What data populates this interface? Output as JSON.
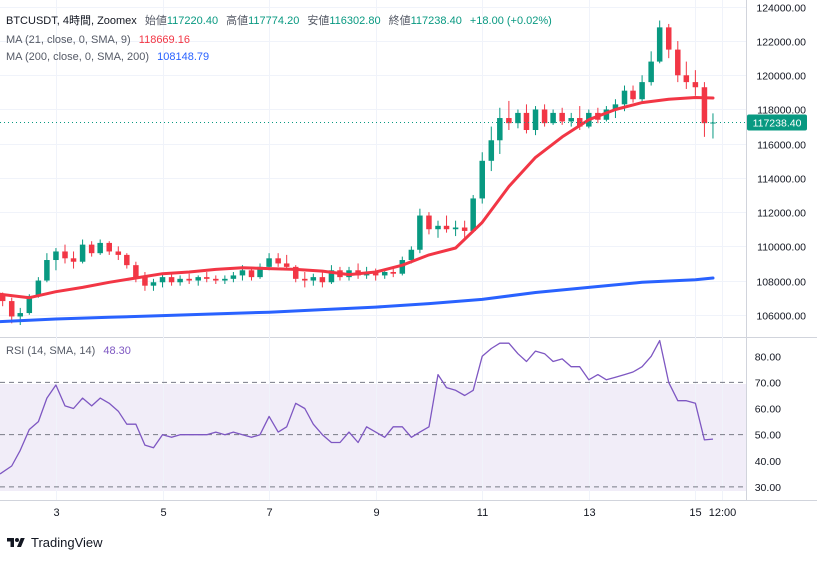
{
  "chart_data": {
    "type": "candlestick",
    "symbol_line": {
      "symbol": "BTCUSDT, 4時間, Zoomex",
      "open_label": "始値",
      "open": "117220.40",
      "high_label": "高値",
      "high": "117774.20",
      "low_label": "安値",
      "low": "116302.80",
      "close_label": "終値",
      "close": "117238.40",
      "change": "+18.00 (+0.02%)"
    },
    "ma21": {
      "label": "MA (21, close, 0, SMA, 9)",
      "value": "118669.16",
      "color": "#f23645"
    },
    "ma200": {
      "label": "MA (200, close, 0, SMA, 200)",
      "value": "108148.79",
      "color": "#2962ff"
    },
    "price_axis": {
      "ticks": [
        "124000.00",
        "122000.00",
        "120000.00",
        "118000.00",
        "116000.00",
        "114000.00",
        "112000.00",
        "110000.00",
        "108000.00",
        "106000.00"
      ],
      "range": [
        104700,
        124400
      ],
      "last_price_label": "117238.40",
      "last_price": 117238.4
    },
    "time_axis": {
      "range_days": [
        1.95,
        15.95
      ],
      "ticks": [
        {
          "day": 3,
          "label": "3"
        },
        {
          "day": 5,
          "label": "5"
        },
        {
          "day": 7,
          "label": "7"
        },
        {
          "day": 9,
          "label": "9"
        },
        {
          "day": 11,
          "label": "11"
        },
        {
          "day": 13,
          "label": "13"
        },
        {
          "day": 15,
          "label": "15"
        },
        {
          "day": 15.5,
          "label": "12:00"
        }
      ]
    },
    "candles": [
      [
        2.0,
        107200,
        107300,
        106500,
        106800
      ],
      [
        2.17,
        106800,
        107000,
        105500,
        105900
      ],
      [
        2.33,
        105900,
        106400,
        105400,
        106100
      ],
      [
        2.5,
        106100,
        107200,
        106000,
        107100
      ],
      [
        2.67,
        107100,
        108200,
        107000,
        108000
      ],
      [
        2.83,
        108000,
        109600,
        107900,
        109200
      ],
      [
        3.0,
        109200,
        109900,
        108600,
        109700
      ],
      [
        3.17,
        109700,
        110100,
        109000,
        109300
      ],
      [
        3.33,
        109300,
        109700,
        108700,
        109100
      ],
      [
        3.5,
        109100,
        110400,
        109000,
        110100
      ],
      [
        3.67,
        110100,
        110300,
        109400,
        109600
      ],
      [
        3.83,
        109600,
        110400,
        109500,
        110200
      ],
      [
        4.0,
        110200,
        110300,
        109500,
        109700
      ],
      [
        4.17,
        109700,
        110000,
        109200,
        109500
      ],
      [
        4.33,
        109500,
        109600,
        108700,
        108900
      ],
      [
        4.5,
        108900,
        109100,
        107900,
        108200
      ],
      [
        4.67,
        108200,
        108500,
        107400,
        107700
      ],
      [
        4.83,
        107700,
        108100,
        107400,
        107900
      ],
      [
        5.0,
        107900,
        108400,
        107600,
        108200
      ],
      [
        5.17,
        108200,
        108500,
        107700,
        107900
      ],
      [
        5.33,
        107900,
        108300,
        107700,
        108100
      ],
      [
        5.5,
        108100,
        108400,
        107800,
        108000
      ],
      [
        5.67,
        108000,
        108300,
        107700,
        108200
      ],
      [
        5.83,
        108200,
        108500,
        107900,
        108100
      ],
      [
        6.0,
        108100,
        108300,
        107800,
        108000
      ],
      [
        6.17,
        108000,
        108300,
        107800,
        108100
      ],
      [
        6.33,
        108100,
        108500,
        107900,
        108300
      ],
      [
        6.5,
        108300,
        108900,
        108000,
        108600
      ],
      [
        6.67,
        108600,
        108800,
        108000,
        108200
      ],
      [
        6.83,
        108200,
        109000,
        108100,
        108800
      ],
      [
        7.0,
        108800,
        109600,
        108600,
        109300
      ],
      [
        7.17,
        109300,
        109600,
        108800,
        109000
      ],
      [
        7.33,
        109000,
        109500,
        108600,
        108800
      ],
      [
        7.5,
        108800,
        108900,
        107900,
        108100
      ],
      [
        7.67,
        108100,
        108500,
        107600,
        108000
      ],
      [
        7.83,
        108000,
        108400,
        107700,
        108200
      ],
      [
        8.0,
        108200,
        108500,
        107600,
        107900
      ],
      [
        8.17,
        107900,
        108900,
        107800,
        108600
      ],
      [
        8.33,
        108600,
        108800,
        108000,
        108200
      ],
      [
        8.5,
        108200,
        108800,
        108000,
        108600
      ],
      [
        8.67,
        108600,
        109000,
        108100,
        108300
      ],
      [
        8.83,
        108300,
        108800,
        108100,
        108500
      ],
      [
        9.0,
        108500,
        108700,
        108000,
        108300
      ],
      [
        9.17,
        108300,
        108700,
        108100,
        108500
      ],
      [
        9.33,
        108500,
        108800,
        108200,
        108400
      ],
      [
        9.5,
        108400,
        109400,
        108300,
        109200
      ],
      [
        9.67,
        109200,
        110000,
        109000,
        109800
      ],
      [
        9.83,
        109800,
        112200,
        109600,
        111800
      ],
      [
        10.0,
        111800,
        112000,
        110700,
        111000
      ],
      [
        10.17,
        111000,
        111500,
        110500,
        111200
      ],
      [
        10.33,
        111200,
        111800,
        110800,
        111000
      ],
      [
        10.5,
        111000,
        111500,
        110600,
        111100
      ],
      [
        10.67,
        111100,
        111500,
        110500,
        110900
      ],
      [
        10.83,
        110900,
        113000,
        110800,
        112800
      ],
      [
        11.0,
        112800,
        115500,
        112500,
        115000
      ],
      [
        11.17,
        115000,
        117000,
        114400,
        116200
      ],
      [
        11.33,
        116200,
        118100,
        115400,
        117500
      ],
      [
        11.5,
        117500,
        118500,
        116800,
        117200
      ],
      [
        11.67,
        117200,
        118000,
        116900,
        117800
      ],
      [
        11.83,
        117800,
        118300,
        116600,
        116800
      ],
      [
        12.0,
        116800,
        118200,
        116500,
        118000
      ],
      [
        12.17,
        118000,
        118300,
        117000,
        117200
      ],
      [
        12.33,
        117200,
        118000,
        117100,
        117800
      ],
      [
        12.5,
        117800,
        118100,
        117100,
        117300
      ],
      [
        12.67,
        117300,
        117800,
        117000,
        117500
      ],
      [
        12.83,
        117500,
        118200,
        116800,
        117000
      ],
      [
        13.0,
        117000,
        118000,
        116900,
        117800
      ],
      [
        13.17,
        117800,
        118100,
        117200,
        117400
      ],
      [
        13.33,
        117400,
        118200,
        117300,
        118000
      ],
      [
        13.5,
        118000,
        118600,
        117500,
        118300
      ],
      [
        13.67,
        118300,
        119400,
        117900,
        119100
      ],
      [
        13.83,
        119100,
        119400,
        118400,
        118600
      ],
      [
        14.0,
        118600,
        120000,
        118400,
        119600
      ],
      [
        14.17,
        119600,
        121400,
        119400,
        120800
      ],
      [
        14.33,
        120800,
        123200,
        120700,
        122800
      ],
      [
        14.5,
        122800,
        123000,
        121000,
        121500
      ],
      [
        14.67,
        121500,
        122000,
        119600,
        120000
      ],
      [
        14.83,
        120000,
        120800,
        119200,
        119600
      ],
      [
        15.0,
        119600,
        120300,
        118800,
        119300
      ],
      [
        15.17,
        119300,
        119600,
        116400,
        117200
      ],
      [
        15.33,
        117220.4,
        117774.2,
        116302.8,
        117238.4
      ]
    ],
    "ma21_points": [
      [
        1.95,
        107200
      ],
      [
        2.5,
        107000
      ],
      [
        3.0,
        107350
      ],
      [
        3.5,
        107600
      ],
      [
        4.0,
        107900
      ],
      [
        4.5,
        108150
      ],
      [
        5.0,
        108400
      ],
      [
        5.5,
        108500
      ],
      [
        6.0,
        108650
      ],
      [
        6.5,
        108750
      ],
      [
        7.0,
        108700
      ],
      [
        7.5,
        108650
      ],
      [
        8.0,
        108550
      ],
      [
        8.5,
        108350
      ],
      [
        9.0,
        108500
      ],
      [
        9.5,
        108900
      ],
      [
        10.0,
        109500
      ],
      [
        10.5,
        109900
      ],
      [
        11.0,
        111400
      ],
      [
        11.5,
        113500
      ],
      [
        12.0,
        115200
      ],
      [
        12.5,
        116400
      ],
      [
        13.0,
        117400
      ],
      [
        13.5,
        118000
      ],
      [
        14.0,
        118400
      ],
      [
        14.5,
        118600
      ],
      [
        15.0,
        118700
      ],
      [
        15.33,
        118669
      ]
    ],
    "ma200_points": [
      [
        1.95,
        105600
      ],
      [
        3.0,
        105750
      ],
      [
        4.0,
        105850
      ],
      [
        5.0,
        105950
      ],
      [
        6.0,
        106050
      ],
      [
        7.0,
        106150
      ],
      [
        8.0,
        106300
      ],
      [
        9.0,
        106450
      ],
      [
        10.0,
        106650
      ],
      [
        11.0,
        106900
      ],
      [
        12.0,
        107300
      ],
      [
        13.0,
        107600
      ],
      [
        14.0,
        107900
      ],
      [
        15.0,
        108050
      ],
      [
        15.33,
        108149
      ]
    ],
    "rsi": {
      "label": "RSI (14, SMA, 14)",
      "value": "48.30",
      "ticks": [
        "80.00",
        "70.00",
        "60.00",
        "50.00",
        "40.00",
        "30.00"
      ],
      "range": [
        25,
        87
      ],
      "band": [
        30,
        70
      ],
      "midline": 50,
      "points": [
        [
          1.95,
          35
        ],
        [
          2.17,
          38
        ],
        [
          2.33,
          44
        ],
        [
          2.5,
          52
        ],
        [
          2.67,
          55
        ],
        [
          2.83,
          64
        ],
        [
          3.0,
          69
        ],
        [
          3.17,
          61
        ],
        [
          3.33,
          60
        ],
        [
          3.5,
          64
        ],
        [
          3.67,
          61
        ],
        [
          3.83,
          64
        ],
        [
          4.0,
          62
        ],
        [
          4.17,
          59
        ],
        [
          4.33,
          54
        ],
        [
          4.5,
          54
        ],
        [
          4.67,
          46
        ],
        [
          4.83,
          45
        ],
        [
          5.0,
          50
        ],
        [
          5.17,
          49
        ],
        [
          5.33,
          50
        ],
        [
          5.5,
          50
        ],
        [
          5.67,
          50
        ],
        [
          5.83,
          50
        ],
        [
          6.0,
          51
        ],
        [
          6.17,
          50
        ],
        [
          6.33,
          51
        ],
        [
          6.5,
          50
        ],
        [
          6.67,
          49
        ],
        [
          6.83,
          50
        ],
        [
          7.0,
          57
        ],
        [
          7.17,
          51
        ],
        [
          7.33,
          53
        ],
        [
          7.5,
          62
        ],
        [
          7.67,
          60
        ],
        [
          7.83,
          54
        ],
        [
          8.0,
          50
        ],
        [
          8.17,
          47
        ],
        [
          8.33,
          47
        ],
        [
          8.5,
          51
        ],
        [
          8.67,
          47
        ],
        [
          8.83,
          53
        ],
        [
          9.0,
          51
        ],
        [
          9.17,
          49
        ],
        [
          9.33,
          53
        ],
        [
          9.5,
          53
        ],
        [
          9.67,
          49
        ],
        [
          9.83,
          51
        ],
        [
          10.0,
          53
        ],
        [
          10.17,
          73
        ],
        [
          10.33,
          68
        ],
        [
          10.5,
          67
        ],
        [
          10.67,
          65
        ],
        [
          10.83,
          67
        ],
        [
          11.0,
          80
        ],
        [
          11.17,
          83
        ],
        [
          11.33,
          85
        ],
        [
          11.5,
          85
        ],
        [
          11.67,
          81
        ],
        [
          11.83,
          78
        ],
        [
          12.0,
          82
        ],
        [
          12.17,
          81
        ],
        [
          12.33,
          78
        ],
        [
          12.5,
          79
        ],
        [
          12.67,
          76
        ],
        [
          12.83,
          76
        ],
        [
          13.0,
          71
        ],
        [
          13.17,
          73
        ],
        [
          13.33,
          71
        ],
        [
          13.5,
          72
        ],
        [
          13.67,
          73
        ],
        [
          13.83,
          74
        ],
        [
          14.0,
          76
        ],
        [
          14.17,
          80
        ],
        [
          14.33,
          86
        ],
        [
          14.5,
          70
        ],
        [
          14.67,
          63
        ],
        [
          14.83,
          63
        ],
        [
          15.0,
          62
        ],
        [
          15.17,
          48
        ],
        [
          15.33,
          48.3
        ]
      ]
    }
  },
  "branding": {
    "logo_text": "TradingView"
  }
}
